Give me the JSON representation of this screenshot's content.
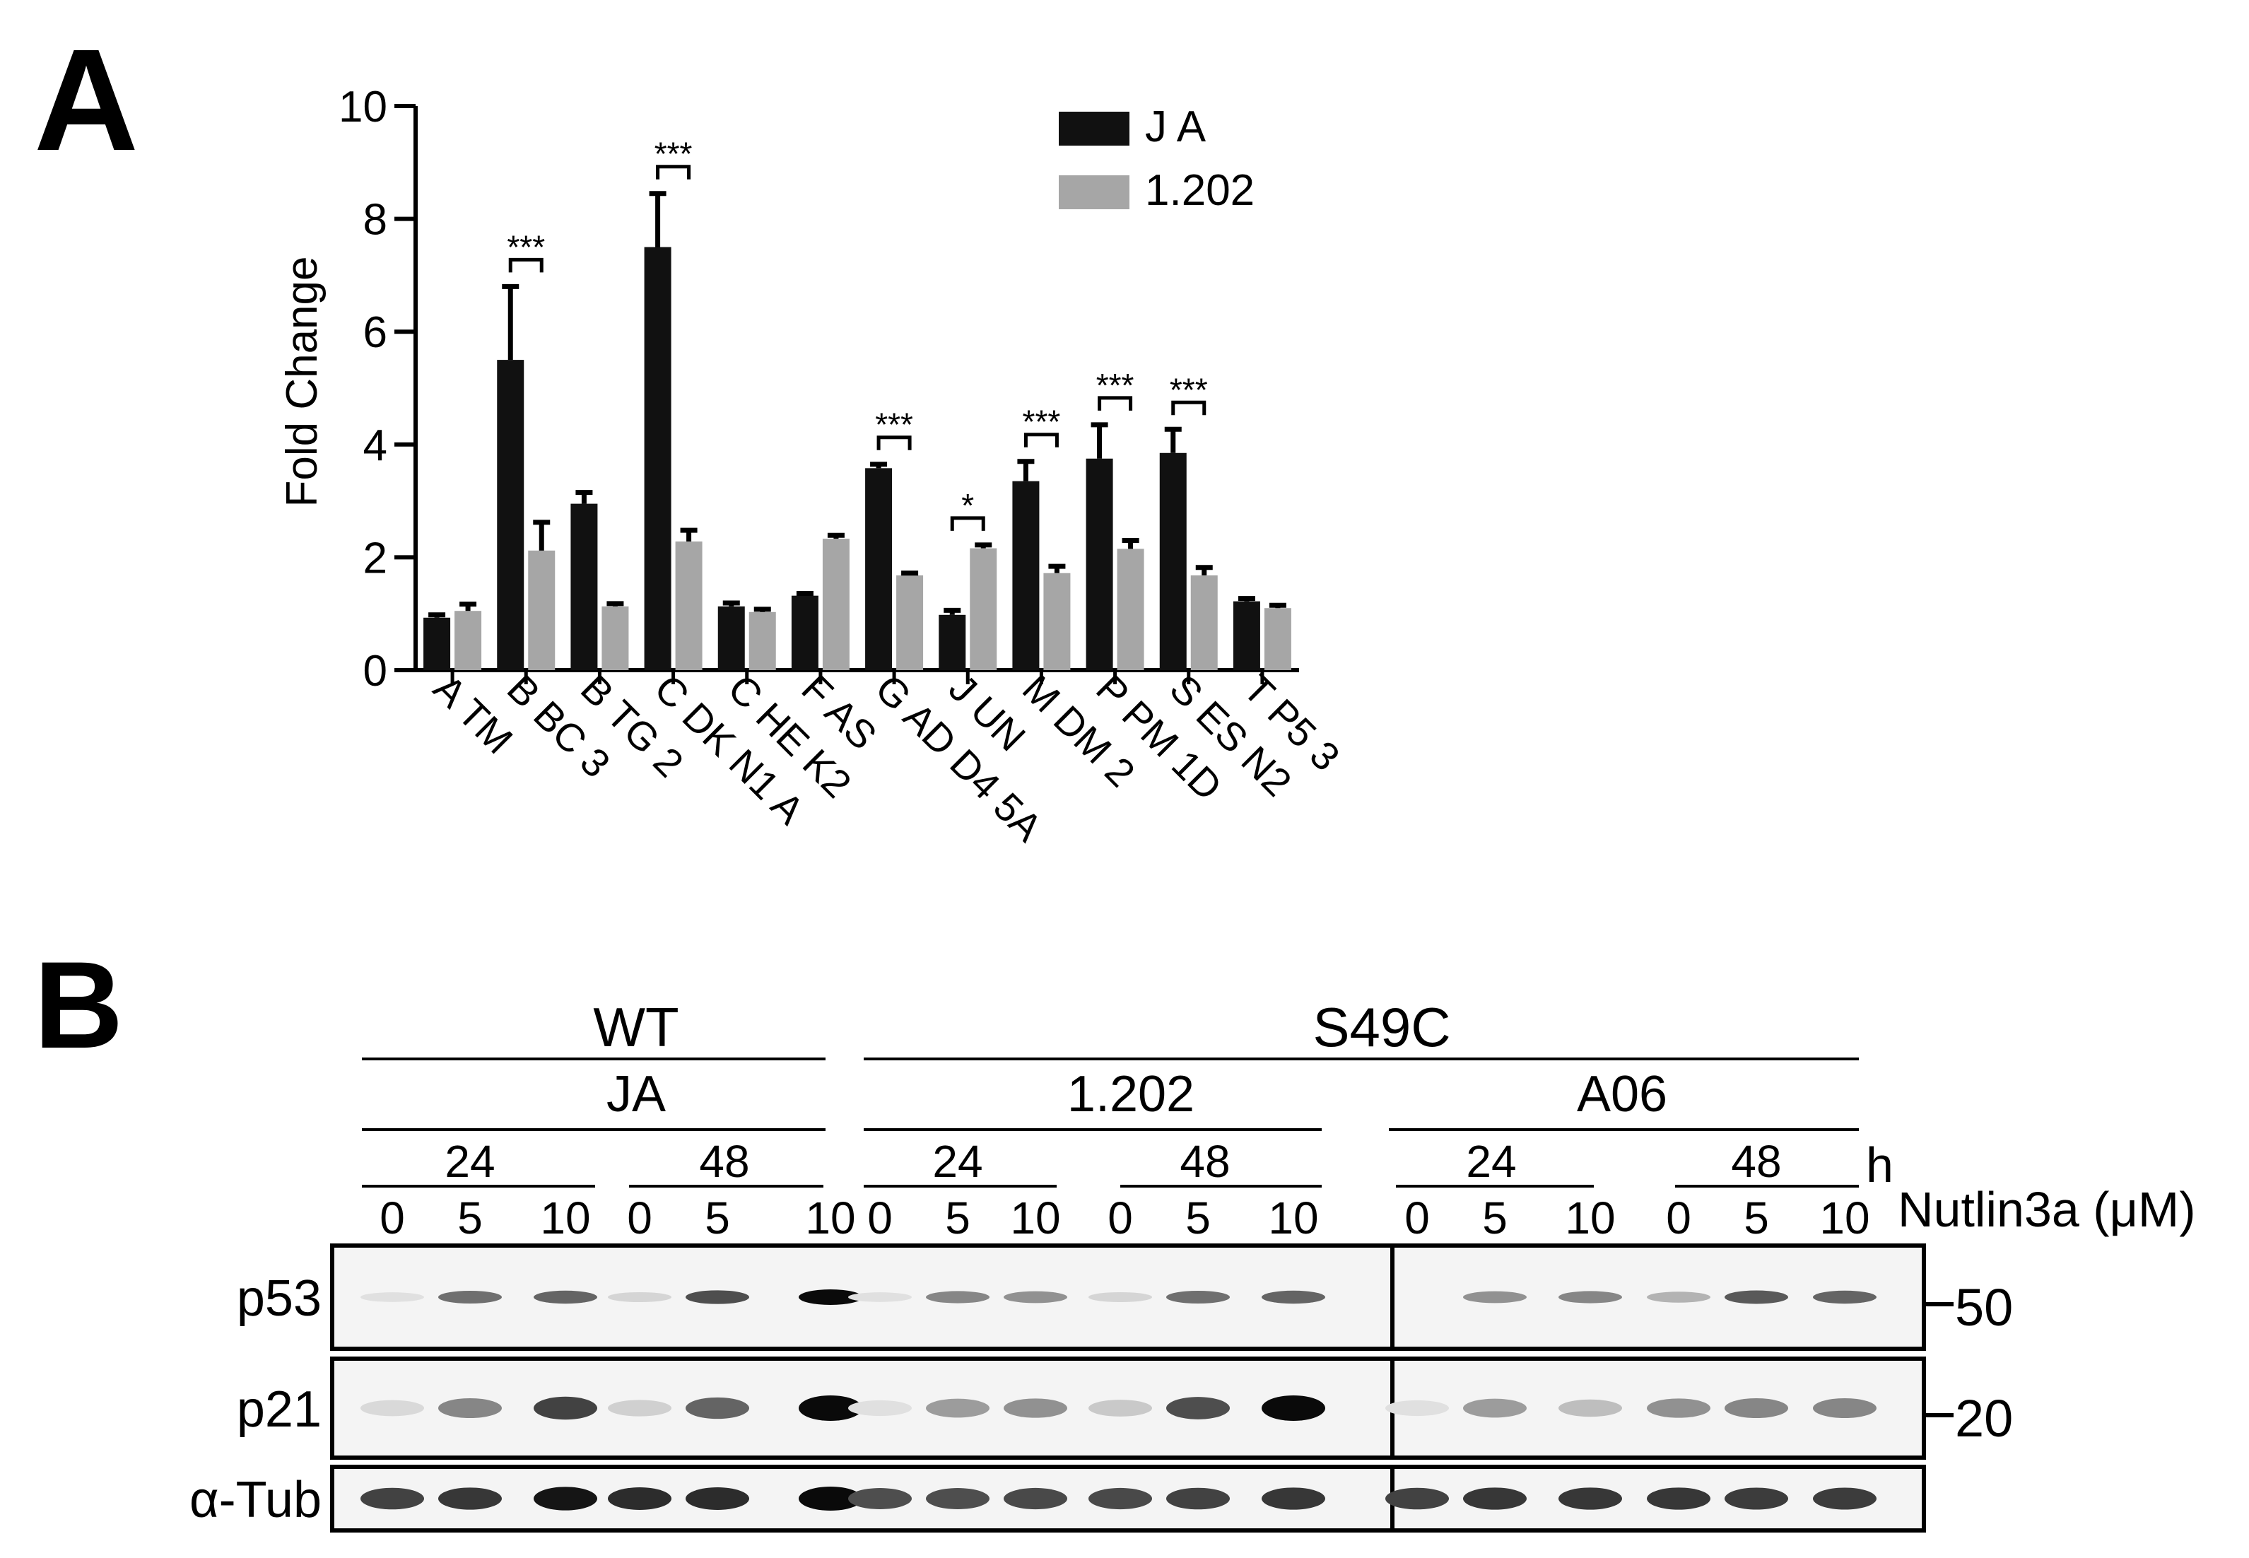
{
  "panel_a": {
    "label": "A"
  },
  "panel_b": {
    "label": "B",
    "genotypes": [
      "WT",
      "S49C"
    ],
    "cell_lines": [
      "JA",
      "1.202",
      "A06"
    ],
    "timepoints": [
      "24",
      "48",
      "24",
      "48",
      "24",
      "48"
    ],
    "time_unit": "h",
    "doses": [
      "0",
      "5",
      "10",
      "0",
      "5",
      "10",
      "0",
      "5",
      "10",
      "0",
      "5",
      "10",
      "0",
      "5",
      "10",
      "0",
      "5",
      "10"
    ],
    "dose_label": "Nutlin3a (μM)",
    "rows": [
      {
        "label": "p53",
        "mw": "50",
        "intensities": [
          0.05,
          0.55,
          0.6,
          0.1,
          0.7,
          1.0,
          0.05,
          0.45,
          0.4,
          0.1,
          0.55,
          0.6,
          0.0,
          0.4,
          0.45,
          0.25,
          0.65,
          0.6
        ]
      },
      {
        "label": "p21",
        "mw": "20",
        "intensities": [
          0.08,
          0.45,
          0.75,
          0.12,
          0.6,
          1.0,
          0.05,
          0.35,
          0.4,
          0.15,
          0.7,
          1.0,
          0.05,
          0.35,
          0.2,
          0.4,
          0.45,
          0.45
        ]
      },
      {
        "label": "α-Tub",
        "mw": "",
        "intensities": [
          0.75,
          0.8,
          0.95,
          0.85,
          0.85,
          1.0,
          0.7,
          0.7,
          0.72,
          0.72,
          0.75,
          0.8,
          0.75,
          0.8,
          0.8,
          0.8,
          0.78,
          0.78
        ]
      }
    ]
  },
  "chart_data": {
    "type": "bar",
    "title": "",
    "xlabel": "",
    "ylabel": "Fold Change",
    "ylim": [
      0,
      10
    ],
    "yticks": [
      "0",
      "2",
      "4",
      "6",
      "8",
      "10"
    ],
    "grid": false,
    "legend_position": "top-right",
    "categories": [
      "A TM",
      "B BC 3",
      "B TG 2",
      "C DK N1 A",
      "C HE K2",
      "F AS",
      "G AD D4 5A",
      "J UN",
      "M DM 2",
      "P PM 1D",
      "S ES N2",
      "T P5 3"
    ],
    "series": [
      {
        "name": "J A",
        "color": "#111111",
        "values": [
          0.93,
          5.5,
          2.95,
          7.5,
          1.13,
          1.32,
          3.58,
          0.98,
          3.35,
          3.75,
          3.85,
          1.22
        ],
        "errors": [
          0.05,
          1.3,
          0.2,
          0.95,
          0.06,
          0.04,
          0.07,
          0.08,
          0.35,
          0.6,
          0.42,
          0.05
        ]
      },
      {
        "name": "1.202",
        "color": "#a6a6a6",
        "values": [
          1.05,
          2.12,
          1.13,
          2.28,
          1.03,
          2.33,
          1.68,
          2.16,
          1.72,
          2.15,
          1.68,
          1.1
        ],
        "errors": [
          0.12,
          0.5,
          0.05,
          0.2,
          0.05,
          0.06,
          0.04,
          0.06,
          0.12,
          0.15,
          0.14,
          0.05
        ]
      }
    ],
    "significance": [
      {
        "category_index": 1,
        "label": "***"
      },
      {
        "category_index": 3,
        "label": "***"
      },
      {
        "category_index": 6,
        "label": "***"
      },
      {
        "category_index": 7,
        "label": "*"
      },
      {
        "category_index": 8,
        "label": "***"
      },
      {
        "category_index": 9,
        "label": "***"
      },
      {
        "category_index": 10,
        "label": "***"
      }
    ]
  }
}
